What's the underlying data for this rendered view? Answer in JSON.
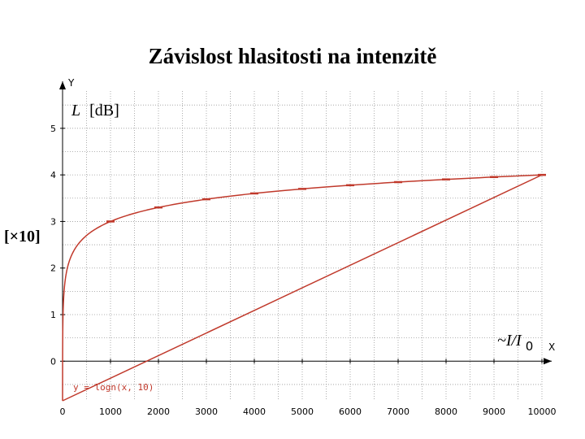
{
  "chart_data": {
    "type": "line",
    "title": "Závislost hlasitosti na intenzitě",
    "x_axis_name": "X",
    "y_axis_name": "Y",
    "ylabel_italic": "L",
    "ylabel_unit": "[dB]",
    "y_scale_note": "[×10]",
    "xlabel_quantity": "~I/I",
    "xlabel_subscript": "0",
    "formula": "y = logn(x, 10)",
    "xlim": [
      0,
      10000
    ],
    "ylim": [
      -0.85,
      5.8
    ],
    "x_ticks": [
      0,
      1000,
      2000,
      3000,
      4000,
      5000,
      6000,
      7000,
      8000,
      9000,
      10000
    ],
    "x_tick_labels": [
      "0",
      "1000",
      "2000",
      "3000",
      "4000",
      "5000",
      "6000",
      "7000",
      "8000",
      "9000",
      "10000"
    ],
    "y_ticks": [
      0,
      1,
      2,
      3,
      4,
      5
    ],
    "y_tick_labels": [
      "0",
      "1",
      "2",
      "3",
      "4",
      "5"
    ],
    "grid": true,
    "series": [
      {
        "function": "log10",
        "x_min": 1,
        "x_max": 10000,
        "color": "#c0392b",
        "x": [
          1,
          2,
          5,
          10,
          20,
          50,
          100,
          200,
          500,
          1000,
          2000,
          3000,
          4000,
          5000,
          6000,
          7000,
          8000,
          9000,
          10000
        ],
        "values": [
          0,
          0.301,
          0.699,
          1,
          1.301,
          1.699,
          2,
          2.301,
          2.699,
          3,
          3.301,
          3.477,
          3.602,
          3.699,
          3.778,
          3.845,
          3.903,
          3.954,
          4
        ]
      }
    ]
  }
}
